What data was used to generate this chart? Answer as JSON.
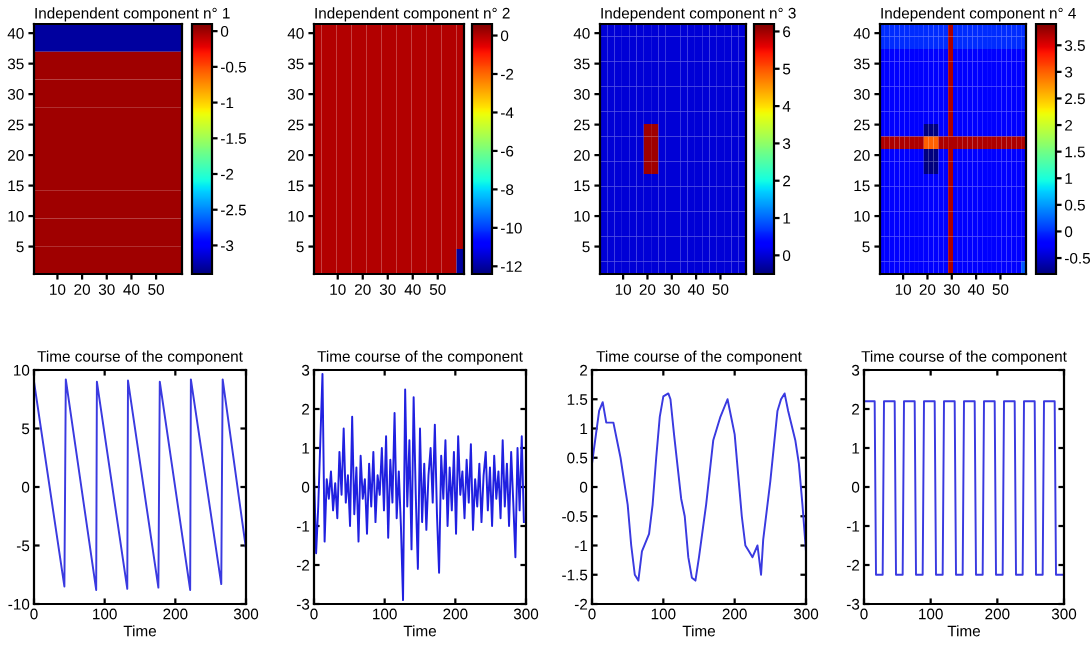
{
  "chart_data": [
    {
      "type": "heatmap",
      "title": "Independent component n° 1",
      "xlim": [
        0.5,
        60.5
      ],
      "ylim": [
        0.5,
        41.5
      ],
      "xticks": [
        10,
        20,
        30,
        40,
        50
      ],
      "yticks": [
        5,
        10,
        15,
        20,
        25,
        30,
        35,
        40
      ],
      "clim": [
        -3.4,
        0.1
      ],
      "cticks": [
        0,
        -0.5,
        -1,
        -1.5,
        -2,
        -2.5,
        -3
      ],
      "cells": [
        [
          -3.3
        ],
        [
          0
        ],
        [
          0
        ],
        [
          0
        ],
        [
          0
        ],
        [
          0
        ],
        [
          0
        ],
        [
          0
        ],
        [
          0
        ]
      ]
    },
    {
      "type": "heatmap",
      "title": "Independent component n° 2",
      "xlim": [
        0.5,
        60.5
      ],
      "ylim": [
        0.5,
        41.5
      ],
      "xticks": [
        10,
        20,
        30,
        40,
        50
      ],
      "yticks": [
        5,
        10,
        15,
        20,
        25,
        30,
        35,
        40
      ],
      "clim": [
        -12.4,
        0.6
      ],
      "cticks": [
        0,
        -2,
        -4,
        -6,
        -8,
        -10,
        -12
      ],
      "cells": [
        [
          0,
          0,
          0,
          0,
          0,
          0,
          0,
          0,
          0,
          0,
          0,
          0,
          0,
          0,
          0,
          0,
          0,
          0,
          0,
          0
        ],
        [
          0,
          0,
          0,
          0,
          0,
          0,
          0,
          0,
          0,
          0,
          0,
          0,
          0,
          0,
          0,
          0,
          0,
          0,
          0,
          0
        ],
        [
          0,
          0,
          0,
          0,
          0,
          0,
          0,
          0,
          0,
          0,
          0,
          0,
          0,
          0,
          0,
          0,
          0,
          0,
          0,
          0
        ],
        [
          0,
          0,
          0,
          0,
          0,
          0,
          0,
          0,
          0,
          0,
          0,
          0,
          0,
          0,
          0,
          0,
          0,
          0,
          0,
          0
        ],
        [
          0,
          0,
          0,
          0,
          0,
          0,
          0,
          0,
          0,
          0,
          0,
          0,
          0,
          0,
          0,
          0,
          0,
          0,
          0,
          0
        ],
        [
          0,
          0,
          0,
          0,
          0,
          0,
          0,
          0,
          0,
          0,
          0,
          0,
          0,
          0,
          0,
          0,
          0,
          0,
          0,
          0
        ],
        [
          0,
          0,
          0,
          0,
          0,
          0,
          0,
          0,
          0,
          0,
          0,
          0,
          0,
          0,
          0,
          0,
          0,
          0,
          0,
          0
        ],
        [
          0,
          0,
          0,
          0,
          0,
          0,
          0,
          0,
          0,
          0,
          0,
          0,
          0,
          0,
          0,
          0,
          0,
          0,
          0,
          0
        ],
        [
          0,
          0,
          0,
          0,
          0,
          0,
          0,
          0,
          0,
          0,
          0,
          0,
          0,
          0,
          0,
          0,
          0,
          0,
          0,
          0
        ],
        [
          0,
          0,
          0,
          0,
          0,
          0,
          0,
          0,
          0,
          0,
          0,
          0,
          0,
          0,
          0,
          0,
          0,
          0,
          0,
          -12
        ]
      ]
    },
    {
      "type": "heatmap",
      "title": "Independent component n° 3",
      "xlim": [
        0.5,
        60.5
      ],
      "ylim": [
        0.5,
        41.5
      ],
      "xticks": [
        10,
        20,
        30,
        40,
        50
      ],
      "yticks": [
        5,
        10,
        15,
        20,
        25,
        30,
        35,
        40
      ],
      "clim": [
        -0.5,
        6.2
      ],
      "cticks": [
        0,
        1,
        2,
        3,
        4,
        5,
        6
      ],
      "cells": [
        [
          0,
          0,
          0,
          0,
          0,
          0,
          0,
          0,
          0,
          0,
          0,
          0,
          0,
          0,
          0,
          0,
          0,
          0,
          0,
          0
        ],
        [
          0,
          0,
          0,
          0,
          0,
          0,
          0,
          0,
          0,
          0,
          0,
          0,
          0,
          0,
          0,
          0,
          0,
          0,
          0,
          0
        ],
        [
          0,
          0,
          0,
          0,
          0,
          0,
          0,
          0,
          0,
          0,
          0,
          0,
          0,
          0,
          0,
          0,
          0,
          0,
          0,
          0
        ],
        [
          0,
          0,
          0,
          0,
          0,
          0,
          0,
          0,
          0,
          0,
          0,
          0,
          0,
          0,
          0,
          0,
          0,
          0,
          0,
          0
        ],
        [
          0,
          0,
          0,
          0,
          0,
          0,
          0,
          0,
          0,
          0,
          0,
          0,
          0,
          0,
          0,
          0,
          0,
          0,
          0,
          0
        ],
        [
          0,
          0,
          0,
          0,
          0,
          0,
          0,
          0,
          0,
          0,
          0,
          0,
          0,
          0,
          0,
          0,
          0,
          0,
          0,
          0
        ],
        [
          0,
          0,
          0,
          0,
          0,
          0,
          0,
          0,
          0,
          0,
          0,
          0,
          0,
          0,
          0,
          0,
          0,
          0,
          0,
          0
        ],
        [
          0,
          0,
          0,
          0,
          0,
          0,
          0,
          0,
          0,
          0,
          0,
          0,
          0,
          0,
          0,
          0,
          0,
          0,
          0,
          0
        ],
        [
          0,
          0,
          0,
          0,
          0,
          0,
          6,
          6,
          0,
          0,
          0,
          0,
          0,
          0,
          0,
          0,
          0,
          0,
          0,
          0
        ],
        [
          0,
          0,
          0,
          0,
          0,
          0,
          6,
          6,
          0,
          0,
          0,
          0,
          0,
          0,
          0,
          0,
          0,
          0,
          0,
          0
        ],
        [
          0,
          0,
          0,
          0,
          0,
          0,
          6,
          6,
          0,
          0,
          0,
          0,
          0,
          0,
          0,
          0,
          0,
          0,
          0,
          0
        ],
        [
          0,
          0,
          0,
          0,
          0,
          0,
          6,
          6,
          0,
          0,
          0,
          0,
          0,
          0,
          0,
          0,
          0,
          0,
          0,
          0
        ],
        [
          0,
          0,
          0,
          0,
          0,
          0,
          0,
          0,
          0,
          0,
          0,
          0,
          0,
          0,
          0,
          0,
          0,
          0,
          0,
          0
        ],
        [
          0,
          0,
          0,
          0,
          0,
          0,
          0,
          0,
          0,
          0,
          0,
          0,
          0,
          0,
          0,
          0,
          0,
          0,
          0,
          0
        ],
        [
          0,
          0,
          0,
          0,
          0,
          0,
          0,
          0,
          0,
          0,
          0,
          0,
          0,
          0,
          0,
          0,
          0,
          0,
          0,
          0
        ],
        [
          0,
          0,
          0,
          0,
          0,
          0,
          0,
          0,
          0,
          0,
          0,
          0,
          0,
          0,
          0,
          0,
          0,
          0,
          0,
          0
        ],
        [
          0,
          0,
          0,
          0,
          0,
          0,
          0,
          0,
          0,
          0,
          0,
          0,
          0,
          0,
          0,
          0,
          0,
          0,
          0,
          0
        ],
        [
          0,
          0,
          0,
          0,
          0,
          0,
          0,
          0,
          0,
          0,
          0,
          0,
          0,
          0,
          0,
          0,
          0,
          0,
          0,
          0
        ],
        [
          0,
          0,
          0,
          0,
          0,
          0,
          0,
          0,
          0,
          0,
          0,
          0,
          0,
          0,
          0,
          0,
          0,
          0,
          0,
          0
        ],
        [
          0,
          0,
          0,
          0,
          0,
          0,
          0,
          0,
          0,
          0,
          0,
          0,
          0,
          0,
          0,
          0,
          0,
          0,
          0,
          0
        ]
      ]
    },
    {
      "type": "heatmap",
      "title": "Independent component n° 4",
      "xlim": [
        0.5,
        60.5
      ],
      "ylim": [
        0.5,
        41.5
      ],
      "xticks": [
        10,
        20,
        30,
        40,
        50
      ],
      "yticks": [
        5,
        10,
        15,
        20,
        25,
        30,
        35,
        40
      ],
      "clim": [
        -0.8,
        3.9
      ],
      "cticks": [
        -0.5,
        0,
        0.5,
        1,
        1.5,
        2,
        2.5,
        3,
        3.5
      ],
      "cells": [
        [
          0,
          0,
          0,
          0,
          0,
          0,
          0,
          0,
          0,
          0,
          0,
          0,
          0,
          0,
          3.7,
          0,
          0,
          0,
          0,
          0,
          0,
          0,
          0,
          0,
          0,
          0,
          0,
          0,
          0,
          0
        ],
        [
          0,
          0,
          0,
          0,
          0,
          0,
          0,
          0,
          0,
          0,
          0,
          0,
          0,
          0,
          3.7,
          0,
          0,
          0,
          0,
          0,
          0,
          0,
          0,
          0,
          0,
          0,
          0,
          0,
          0,
          0
        ],
        [
          -0.2,
          -0.2,
          -0.2,
          -0.2,
          -0.2,
          -0.2,
          -0.2,
          -0.2,
          -0.2,
          -0.2,
          -0.2,
          -0.2,
          -0.2,
          -0.2,
          3.7,
          -0.2,
          -0.2,
          -0.2,
          -0.2,
          -0.2,
          -0.2,
          -0.2,
          -0.2,
          -0.2,
          -0.2,
          -0.2,
          -0.2,
          -0.2,
          -0.2,
          -0.2
        ],
        [
          -0.2,
          -0.2,
          -0.2,
          -0.2,
          -0.2,
          -0.2,
          -0.2,
          -0.2,
          -0.2,
          -0.2,
          -0.2,
          -0.2,
          -0.2,
          -0.2,
          3.7,
          -0.2,
          -0.2,
          -0.2,
          -0.2,
          -0.2,
          -0.2,
          -0.2,
          -0.2,
          -0.2,
          -0.2,
          -0.2,
          -0.2,
          -0.2,
          -0.2,
          -0.2
        ],
        [
          -0.2,
          -0.2,
          -0.2,
          -0.2,
          -0.2,
          -0.2,
          -0.2,
          -0.2,
          -0.2,
          -0.2,
          -0.2,
          -0.2,
          -0.2,
          -0.2,
          3.7,
          -0.2,
          -0.2,
          -0.2,
          -0.2,
          -0.2,
          -0.2,
          -0.2,
          -0.2,
          -0.2,
          -0.2,
          -0.2,
          -0.2,
          -0.2,
          -0.2,
          -0.2
        ],
        [
          -0.2,
          -0.2,
          -0.2,
          -0.2,
          -0.2,
          -0.2,
          -0.2,
          -0.2,
          -0.2,
          -0.2,
          -0.2,
          -0.2,
          -0.2,
          -0.2,
          3.7,
          -0.2,
          -0.2,
          -0.2,
          -0.2,
          -0.2,
          -0.2,
          -0.2,
          -0.2,
          -0.2,
          -0.2,
          -0.2,
          -0.2,
          -0.2,
          -0.2,
          -0.2
        ],
        [
          -0.2,
          -0.2,
          -0.2,
          -0.2,
          -0.2,
          -0.2,
          -0.2,
          -0.2,
          -0.2,
          -0.2,
          -0.2,
          -0.2,
          -0.2,
          -0.2,
          3.7,
          -0.2,
          -0.2,
          -0.2,
          -0.2,
          -0.2,
          -0.2,
          -0.2,
          -0.2,
          -0.2,
          -0.2,
          -0.2,
          -0.2,
          -0.2,
          -0.2,
          -0.2
        ],
        [
          -0.2,
          -0.2,
          -0.2,
          -0.2,
          -0.2,
          -0.2,
          -0.2,
          -0.2,
          -0.2,
          -0.2,
          -0.2,
          -0.2,
          -0.2,
          -0.2,
          3.7,
          -0.2,
          -0.2,
          -0.2,
          -0.2,
          -0.2,
          -0.2,
          -0.2,
          -0.2,
          -0.2,
          -0.2,
          -0.2,
          -0.2,
          -0.2,
          -0.2,
          -0.2
        ],
        [
          -0.2,
          -0.2,
          -0.2,
          -0.2,
          -0.2,
          -0.2,
          -0.2,
          -0.2,
          -0.2,
          -0.8,
          -0.8,
          -0.8,
          -0.2,
          -0.2,
          3.7,
          -0.2,
          -0.2,
          -0.2,
          -0.2,
          -0.2,
          -0.2,
          -0.2,
          -0.2,
          -0.2,
          -0.2,
          -0.2,
          -0.2,
          -0.2,
          -0.2,
          -0.2
        ],
        [
          3.7,
          3.7,
          3.7,
          3.7,
          3.7,
          3.7,
          3.7,
          3.7,
          3.7,
          3.0,
          3.0,
          3.0,
          3.7,
          3.7,
          3.7,
          3.7,
          3.7,
          3.7,
          3.7,
          3.7,
          3.7,
          3.7,
          3.7,
          3.7,
          3.7,
          3.7,
          3.7,
          3.7,
          3.7,
          3.7
        ],
        [
          -0.2,
          -0.2,
          -0.2,
          -0.2,
          -0.2,
          -0.2,
          -0.2,
          -0.2,
          -0.2,
          -0.8,
          -0.8,
          -0.8,
          -0.2,
          -0.2,
          3.7,
          -0.2,
          -0.2,
          -0.2,
          -0.2,
          -0.2,
          -0.2,
          -0.2,
          -0.2,
          -0.2,
          -0.2,
          -0.2,
          -0.2,
          -0.2,
          -0.2,
          -0.2
        ],
        [
          -0.2,
          -0.2,
          -0.2,
          -0.2,
          -0.2,
          -0.2,
          -0.2,
          -0.2,
          -0.2,
          -0.8,
          -0.8,
          -0.8,
          -0.2,
          -0.2,
          3.7,
          -0.2,
          -0.2,
          -0.2,
          -0.2,
          -0.2,
          -0.2,
          -0.2,
          -0.2,
          -0.2,
          -0.2,
          -0.2,
          -0.2,
          -0.2,
          -0.2,
          -0.2
        ],
        [
          -0.2,
          -0.2,
          -0.2,
          -0.2,
          -0.2,
          -0.2,
          -0.2,
          -0.2,
          -0.2,
          -0.2,
          -0.2,
          -0.2,
          -0.2,
          -0.2,
          3.7,
          -0.2,
          -0.2,
          -0.2,
          -0.2,
          -0.2,
          -0.2,
          -0.2,
          -0.2,
          -0.2,
          -0.2,
          -0.2,
          -0.2,
          -0.2,
          -0.2,
          -0.2
        ],
        [
          -0.2,
          -0.2,
          -0.2,
          -0.2,
          -0.2,
          -0.2,
          -0.2,
          -0.2,
          -0.2,
          -0.2,
          -0.2,
          -0.2,
          -0.2,
          -0.2,
          3.7,
          -0.2,
          -0.2,
          -0.2,
          -0.2,
          -0.2,
          -0.2,
          -0.2,
          -0.2,
          -0.2,
          -0.2,
          -0.2,
          -0.2,
          -0.2,
          -0.2,
          -0.2
        ],
        [
          -0.2,
          -0.2,
          -0.2,
          -0.2,
          -0.2,
          -0.2,
          -0.2,
          -0.2,
          -0.2,
          -0.2,
          -0.2,
          -0.2,
          -0.2,
          -0.2,
          3.7,
          -0.2,
          -0.2,
          -0.2,
          -0.2,
          -0.2,
          -0.2,
          -0.2,
          -0.2,
          -0.2,
          -0.2,
          -0.2,
          -0.2,
          -0.2,
          -0.2,
          -0.2
        ],
        [
          -0.2,
          -0.2,
          -0.2,
          -0.2,
          -0.2,
          -0.2,
          -0.2,
          -0.2,
          -0.2,
          -0.2,
          -0.2,
          -0.2,
          -0.2,
          -0.2,
          3.7,
          -0.2,
          -0.2,
          -0.2,
          -0.2,
          -0.2,
          -0.2,
          -0.2,
          -0.2,
          -0.2,
          -0.2,
          -0.2,
          -0.2,
          -0.2,
          -0.2,
          -0.2
        ],
        [
          -0.2,
          -0.2,
          -0.2,
          -0.2,
          -0.2,
          -0.2,
          -0.2,
          -0.2,
          -0.2,
          -0.2,
          -0.2,
          -0.2,
          -0.2,
          -0.2,
          3.7,
          -0.2,
          -0.2,
          -0.2,
          -0.2,
          -0.2,
          -0.2,
          -0.2,
          -0.2,
          -0.2,
          -0.2,
          -0.2,
          -0.2,
          -0.2,
          -0.2,
          -0.2
        ],
        [
          -0.2,
          -0.2,
          -0.2,
          -0.2,
          -0.2,
          -0.2,
          -0.2,
          -0.2,
          -0.2,
          -0.2,
          -0.2,
          -0.2,
          -0.2,
          -0.2,
          3.7,
          -0.2,
          -0.2,
          -0.2,
          -0.2,
          -0.2,
          -0.2,
          -0.2,
          -0.2,
          -0.2,
          -0.2,
          -0.2,
          -0.2,
          -0.2,
          -0.2,
          -0.2
        ],
        [
          -0.2,
          -0.2,
          -0.2,
          -0.2,
          -0.2,
          -0.2,
          -0.2,
          -0.2,
          -0.2,
          -0.2,
          -0.2,
          -0.2,
          -0.2,
          -0.2,
          3.7,
          -0.2,
          -0.2,
          -0.2,
          -0.2,
          -0.2,
          -0.2,
          -0.2,
          -0.2,
          -0.2,
          -0.2,
          -0.2,
          -0.2,
          -0.2,
          -0.2,
          -0.2
        ],
        [
          -0.2,
          -0.2,
          -0.2,
          -0.2,
          -0.2,
          -0.2,
          -0.2,
          -0.2,
          -0.2,
          -0.2,
          -0.2,
          -0.2,
          -0.2,
          -0.2,
          3.7,
          -0.2,
          -0.2,
          -0.2,
          -0.2,
          -0.2,
          -0.2,
          -0.2,
          -0.2,
          -0.2,
          -0.2,
          -0.2,
          -0.2,
          -0.2,
          -0.2,
          0.2
        ]
      ]
    },
    {
      "type": "line",
      "title": "Time course of the component",
      "xlabel": "Time",
      "xlim": [
        0,
        300
      ],
      "ylim": [
        -10,
        10
      ],
      "xticks": [
        0,
        100,
        200,
        300
      ],
      "yticks": [
        -10,
        -5,
        0,
        5,
        10
      ],
      "series": [
        {
          "color": "#3a3ae0",
          "x": [
            0,
            43,
            44,
            45,
            88,
            89,
            132,
            133,
            176,
            177,
            178,
            221,
            222,
            265,
            266,
            267,
            300
          ],
          "values": [
            9,
            -8.5,
            0,
            9.2,
            -8.8,
            9.0,
            -8.7,
            9.1,
            -8.6,
            0,
            9.0,
            -8.8,
            9.2,
            -8.3,
            1,
            9.2,
            -5.3
          ]
        }
      ]
    },
    {
      "type": "line",
      "title": "Time course of the component",
      "xlabel": "Time",
      "xlim": [
        0,
        300
      ],
      "ylim": [
        -3,
        3
      ],
      "xticks": [
        0,
        100,
        200,
        300
      ],
      "yticks": [
        -3,
        -2,
        -1,
        0,
        1,
        2,
        3
      ],
      "series": [
        {
          "color": "#2020e0",
          "x": [
            0,
            3,
            6,
            9,
            12,
            15,
            18,
            21,
            24,
            27,
            30,
            33,
            36,
            39,
            42,
            45,
            48,
            51,
            54,
            57,
            60,
            63,
            66,
            69,
            72,
            75,
            78,
            81,
            84,
            87,
            90,
            93,
            96,
            99,
            102,
            105,
            108,
            111,
            114,
            117,
            120,
            123,
            126,
            129,
            132,
            135,
            138,
            141,
            144,
            147,
            150,
            153,
            156,
            159,
            162,
            165,
            168,
            171,
            174,
            177,
            180,
            183,
            186,
            189,
            192,
            195,
            198,
            201,
            204,
            207,
            210,
            213,
            216,
            219,
            222,
            225,
            228,
            231,
            234,
            237,
            240,
            243,
            246,
            249,
            252,
            255,
            258,
            261,
            264,
            267,
            270,
            273,
            276,
            279,
            282,
            285,
            288,
            291,
            294,
            297
          ],
          "values": [
            0.4,
            -1.7,
            -0.5,
            1.2,
            2.9,
            -1.4,
            0.2,
            -0.3,
            0.4,
            -0.6,
            0.1,
            -0.8,
            0.9,
            -0.2,
            1.5,
            -0.4,
            0.3,
            -1.0,
            1.8,
            -0.7,
            0.5,
            -1.4,
            0.8,
            -0.3,
            0.2,
            -1.2,
            0.6,
            -0.5,
            0.9,
            -0.9,
            0.3,
            -0.2,
            1.0,
            -0.6,
            1.3,
            -1.3,
            0.7,
            -0.4,
            1.9,
            -0.8,
            0.4,
            -1.0,
            -2.9,
            2.5,
            -0.5,
            1.2,
            -1.6,
            2.3,
            -0.2,
            -2.1,
            1.5,
            -0.9,
            0.6,
            -1.1,
            0.3,
            1.0,
            -0.4,
            1.6,
            -0.7,
            -2.2,
            0.8,
            -0.3,
            1.2,
            -1.0,
            0.5,
            -0.6,
            0.9,
            -1.2,
            1.3,
            -0.2,
            0.4,
            -0.8,
            0.7,
            -0.4,
            1.1,
            -1.1,
            0.2,
            -0.5,
            0.6,
            -0.9,
            0.3,
            0.9,
            -0.6,
            0.5,
            -1.0,
            0.8,
            -0.3,
            0.4,
            -0.8,
            1.2,
            -0.5,
            0.6,
            -1.0,
            0.9,
            -0.4,
            -1.8,
            1.0,
            -0.6,
            1.3,
            -0.9
          ]
        }
      ]
    },
    {
      "type": "line",
      "title": "Time course of the component",
      "xlabel": "Time",
      "xlim": [
        0,
        300
      ],
      "ylim": [
        -2,
        2
      ],
      "xticks": [
        0,
        100,
        200,
        300
      ],
      "yticks": [
        -2,
        -1.5,
        -1,
        -0.5,
        0,
        0.5,
        1,
        1.5,
        2
      ],
      "series": [
        {
          "color": "#3a3ae0",
          "x": [
            0,
            10,
            15,
            20,
            30,
            35,
            40,
            50,
            55,
            60,
            65,
            70,
            80,
            85,
            90,
            95,
            100,
            107,
            110,
            115,
            125,
            130,
            135,
            140,
            145,
            150,
            160,
            170,
            175,
            180,
            190,
            195,
            200,
            205,
            210,
            215,
            220,
            225,
            232,
            237,
            240,
            250,
            260,
            265,
            270,
            275,
            285,
            290,
            295,
            300
          ],
          "values": [
            0.4,
            1.3,
            1.45,
            1.1,
            1.1,
            0.8,
            0.5,
            -0.3,
            -1.0,
            -1.5,
            -1.6,
            -1.1,
            -0.8,
            -0.3,
            0.5,
            1.2,
            1.55,
            1.6,
            1.5,
            0.9,
            -0.2,
            -0.5,
            -1.2,
            -1.55,
            -1.6,
            -1.2,
            -0.3,
            0.8,
            1.0,
            1.2,
            1.5,
            1.2,
            0.9,
            0.2,
            -0.5,
            -1.0,
            -1.1,
            -1.2,
            -1.0,
            -1.5,
            -0.9,
            0.1,
            1.3,
            1.5,
            1.6,
            1.3,
            0.8,
            0.4,
            -0.3,
            -1.1
          ]
        }
      ]
    },
    {
      "type": "line",
      "title": "Time course of the component",
      "xlabel": "Time",
      "xlim": [
        0,
        300
      ],
      "ylim": [
        -3,
        3
      ],
      "xticks": [
        0,
        100,
        200,
        300
      ],
      "yticks": [
        -3,
        -2,
        -1,
        0,
        1,
        2,
        3
      ],
      "series": [
        {
          "color": "#3a3ae0",
          "x": [
            0,
            16,
            18,
            28,
            30,
            46,
            48,
            58,
            60,
            76,
            78,
            88,
            90,
            106,
            108,
            118,
            120,
            136,
            138,
            148,
            150,
            166,
            168,
            178,
            180,
            196,
            198,
            208,
            210,
            226,
            228,
            238,
            240,
            256,
            258,
            268,
            270,
            286,
            288,
            298
          ],
          "values": [
            2.2,
            2.2,
            -2.25,
            -2.25,
            2.2,
            2.2,
            -2.25,
            -2.25,
            2.2,
            2.2,
            -2.25,
            -2.25,
            2.2,
            2.2,
            -2.25,
            -2.25,
            2.2,
            2.2,
            -2.25,
            -2.25,
            2.2,
            2.2,
            -2.25,
            -2.25,
            2.2,
            2.2,
            -2.25,
            -2.25,
            2.2,
            2.2,
            -2.25,
            -2.25,
            2.2,
            2.2,
            -2.25,
            -2.25,
            2.2,
            2.2,
            -2.25,
            -2.25
          ]
        }
      ]
    }
  ]
}
